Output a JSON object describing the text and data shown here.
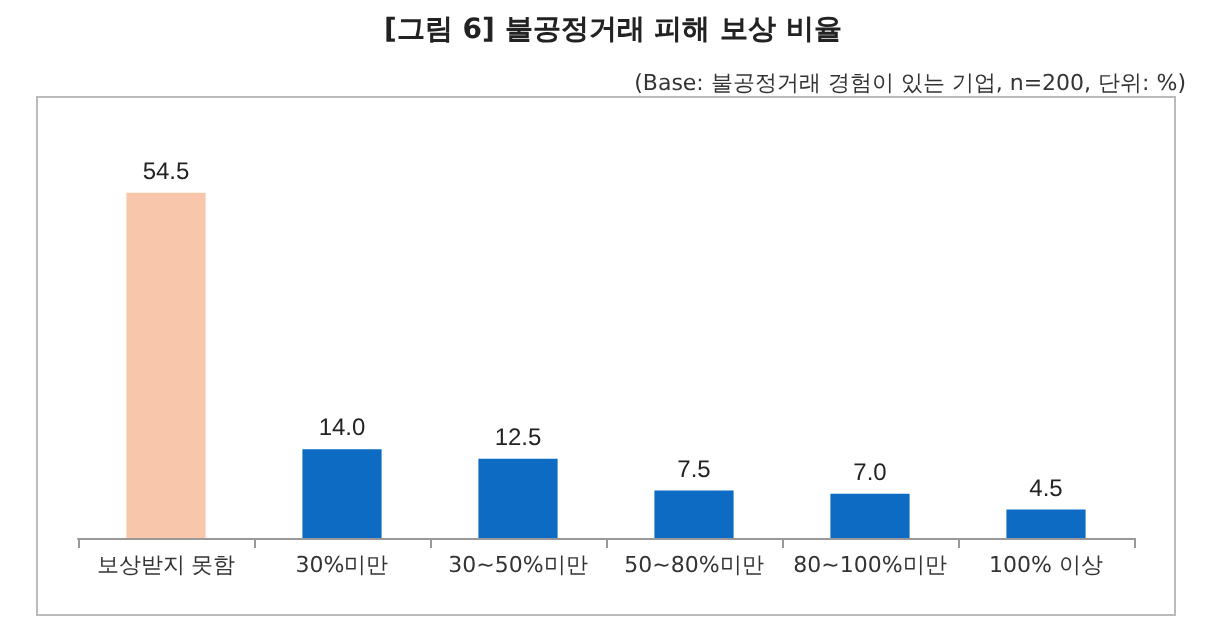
{
  "chart_data": {
    "type": "bar",
    "title": "[그림 6] 불공정거래 피해 보상 비율",
    "subtitle": "(Base: 불공정거래 경험이 있는 기업, n=200, 단위: %)",
    "categories": [
      "보상받지 못함",
      "30%미만",
      "30~50%미만",
      "50~80%미만",
      "80~100%미만",
      "100% 이상"
    ],
    "values": [
      54.5,
      14.0,
      12.5,
      7.5,
      7.0,
      4.5
    ],
    "colors": [
      "#f8c6aa",
      "#0d6bc4",
      "#0d6bc4",
      "#0d6bc4",
      "#0d6bc4",
      "#0d6bc4"
    ],
    "value_labels": [
      "54.5",
      "14.0",
      "12.5",
      "7.5",
      "7.0",
      "4.5"
    ]
  }
}
